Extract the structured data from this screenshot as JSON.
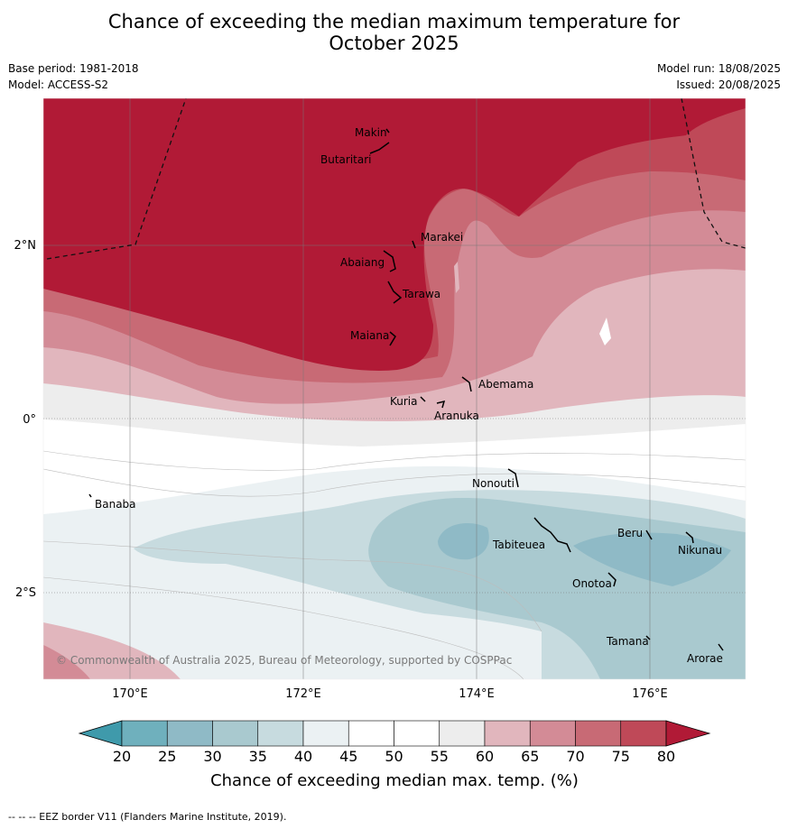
{
  "title_line1": "Chance of exceeding the median maximum temperature for",
  "title_line2": "October 2025",
  "base_period": "Base period: 1981-2018",
  "model": "Model: ACCESS-S2",
  "model_run": "Model run: 18/08/2025",
  "issued": "Issued: 20/08/2025",
  "lon_ticks": [
    "170°E",
    "172°E",
    "174°E",
    "176°E"
  ],
  "lat_ticks": [
    "2°N",
    "0°",
    "2°S"
  ],
  "copyright": "© Commonwealth of Australia 2025, Bureau of Meteorology, supported by COSPPac",
  "places": [
    "Makin",
    "Butaritari",
    "Marakei",
    "Abaiang",
    "Tarawa",
    "Maiana",
    "Abemama",
    "Kuria",
    "Aranuka",
    "Banaba",
    "Nonouti",
    "Tabiteuea",
    "Beru",
    "Nikunau",
    "Onotoa",
    "Tamana",
    "Arorae"
  ],
  "colorbar": {
    "label": "Chance of exceeding median max. temp. (%)",
    "ticks": [
      "20",
      "25",
      "30",
      "35",
      "40",
      "45",
      "50",
      "55",
      "60",
      "65",
      "70",
      "75",
      "80"
    ],
    "colors": [
      "#3f9aab",
      "#6fb0bd",
      "#8fbac6",
      "#a9c9cf",
      "#c7dbdf",
      "#ebf1f3",
      "#ffffff",
      "#ffffff",
      "#ededed",
      "#e1b6bd",
      "#d38b96",
      "#c86a75",
      "#bf4958",
      "#b11a36"
    ]
  },
  "legend_note": "--  --  -- EEZ border V11 (Flanders Marine Institute, 2019)."
}
